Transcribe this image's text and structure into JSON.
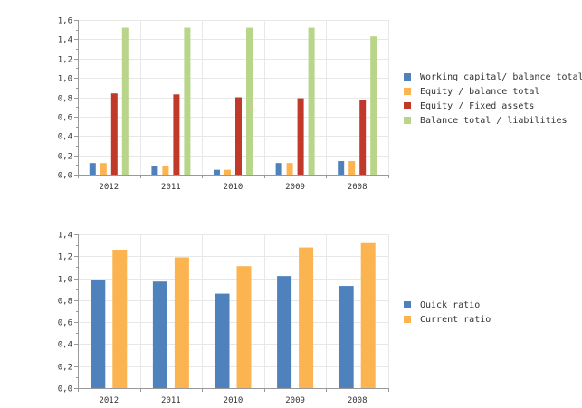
{
  "chart_data": [
    {
      "type": "bar",
      "title": "",
      "xlabel": "",
      "ylabel": "",
      "categories": [
        "2012",
        "2011",
        "2010",
        "2009",
        "2008"
      ],
      "ylim": [
        0,
        1.6
      ],
      "yticks": [
        "0,0",
        "0,2",
        "0,4",
        "0,6",
        "0,8",
        "1,0",
        "1,2",
        "1,4",
        "1,6"
      ],
      "tick_values": [
        0,
        0.2,
        0.4,
        0.6,
        0.8,
        1.0,
        1.2,
        1.4,
        1.6
      ],
      "legend_position": "right",
      "series": [
        {
          "name": "Working capital/ balance total",
          "color": "#4f81bd",
          "values": [
            0.12,
            0.09,
            0.05,
            0.12,
            0.14
          ]
        },
        {
          "name": "Equity / balance total",
          "color": "#fbb450",
          "values": [
            0.12,
            0.09,
            0.05,
            0.12,
            0.14
          ]
        },
        {
          "name": "Equity / Fixed assets",
          "color": "#c0392b",
          "values": [
            0.84,
            0.83,
            0.8,
            0.79,
            0.77
          ]
        },
        {
          "name": "Balance total / liabilities",
          "color": "#b8d58a",
          "values": [
            1.52,
            1.52,
            1.52,
            1.52,
            1.43
          ]
        }
      ]
    },
    {
      "type": "bar",
      "title": "",
      "xlabel": "",
      "ylabel": "",
      "categories": [
        "2012",
        "2011",
        "2010",
        "2009",
        "2008"
      ],
      "ylim": [
        0,
        1.4
      ],
      "yticks": [
        "0,0",
        "0,2",
        "0,4",
        "0,6",
        "0,8",
        "1,0",
        "1,2",
        "1,4"
      ],
      "tick_values": [
        0,
        0.2,
        0.4,
        0.6,
        0.8,
        1.0,
        1.2,
        1.4
      ],
      "legend_position": "right",
      "series": [
        {
          "name": "Quick ratio",
          "color": "#4f81bd",
          "values": [
            0.98,
            0.97,
            0.86,
            1.02,
            0.93
          ]
        },
        {
          "name": "Current ratio",
          "color": "#fbb450",
          "values": [
            1.26,
            1.19,
            1.11,
            1.28,
            1.32
          ]
        }
      ]
    }
  ]
}
